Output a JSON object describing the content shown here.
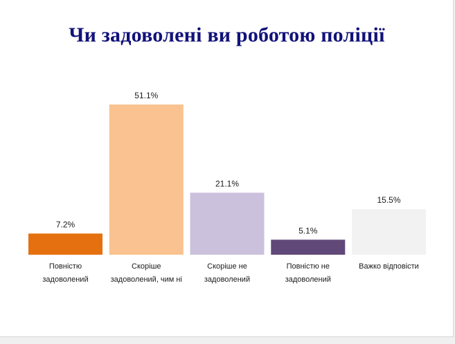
{
  "chart_data": {
    "type": "bar",
    "title": "Чи задоволені ви роботою поліції",
    "categories": [
      [
        "Повністю",
        "задоволений"
      ],
      [
        "Скоріше",
        "задоволений, чим ні"
      ],
      [
        "Скоріше не",
        "задоволений"
      ],
      [
        "Повністю не",
        "задоволений"
      ],
      [
        "Важко відповісти"
      ]
    ],
    "values": [
      7.2,
      51.1,
      21.1,
      5.1,
      15.5
    ],
    "value_labels": [
      "7.2%",
      "51.1%",
      "21.1%",
      "5.1%",
      "15.5%"
    ],
    "colors": [
      "#e5700f",
      "#f9c290",
      "#cbc1dc",
      "#604878",
      "#f2f2f2"
    ],
    "xlabel": "",
    "ylabel": "",
    "ylim": [
      0,
      51.1
    ],
    "grid": false,
    "legend": "none"
  },
  "colors": {
    "title": "#12127a",
    "background": "#ffffff"
  }
}
